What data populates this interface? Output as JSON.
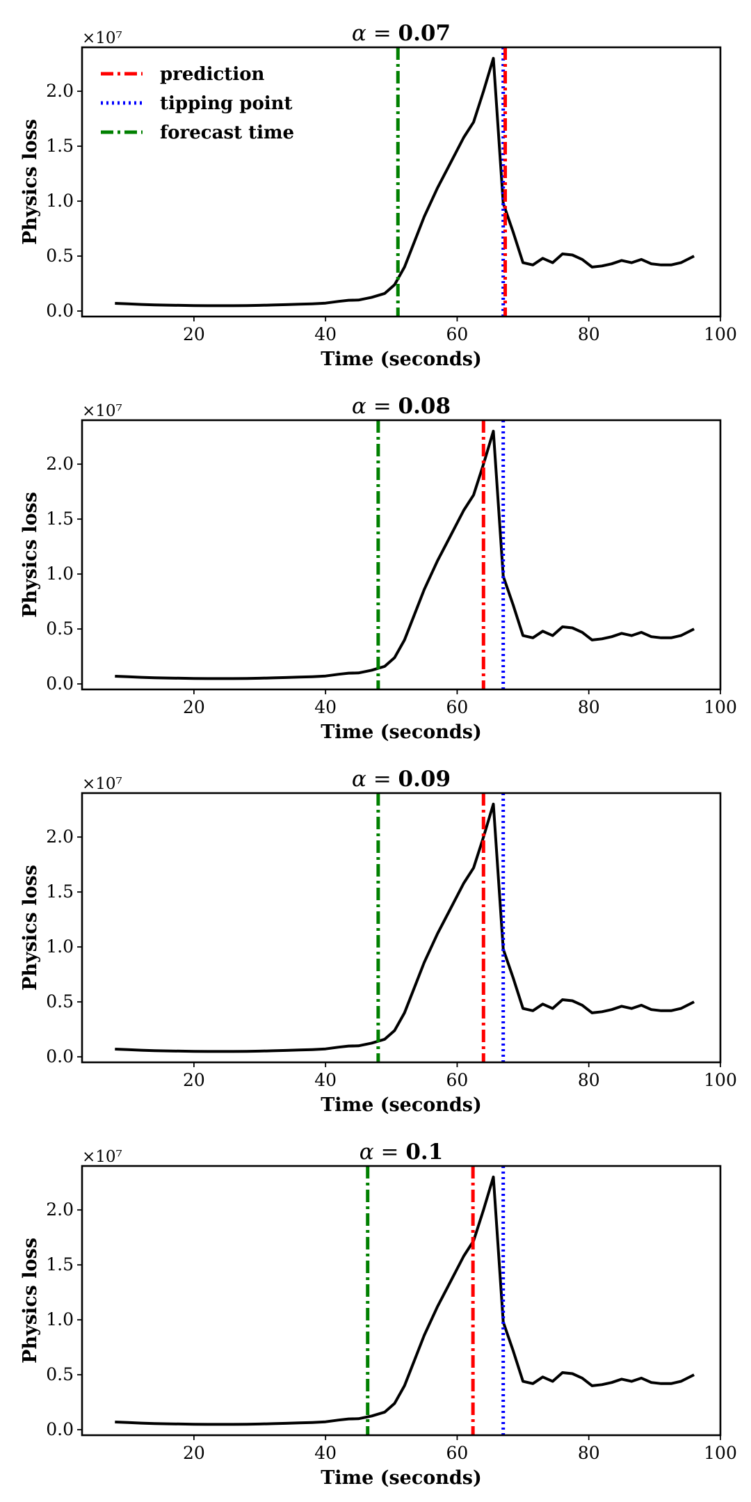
{
  "chart_data": [
    {
      "type": "line",
      "title": {
        "prefix": "α = ",
        "value": "0.07"
      },
      "xlabel": "Time (seconds)",
      "ylabel": "Physics loss",
      "y_exponent_label": "×10⁷",
      "xlim": [
        3,
        100
      ],
      "ylim": [
        -0.05,
        2.4
      ],
      "x_ticks": [
        20,
        40,
        60,
        80,
        100
      ],
      "y_ticks": [
        "0.0",
        "0.5",
        "1.0",
        "1.5",
        "2.0"
      ],
      "legend": {
        "show": true,
        "position": "top-left"
      },
      "x": [
        8,
        10,
        12,
        14,
        16,
        18,
        20,
        22,
        24,
        26,
        28,
        30,
        32,
        34,
        36,
        38,
        40,
        42,
        43.5,
        45,
        47,
        49,
        50.5,
        52,
        53.5,
        55,
        57,
        59,
        61,
        62.5,
        64,
        65.5,
        67,
        68.5,
        70,
        71.5,
        73,
        74.5,
        76,
        77.5,
        79,
        80.5,
        82,
        83.5,
        85,
        86.5,
        88,
        89.5,
        91,
        92.5,
        94,
        96
      ],
      "series": [
        {
          "values": [
            0.07,
            0.065,
            0.06,
            0.056,
            0.054,
            0.052,
            0.05,
            0.049,
            0.049,
            0.049,
            0.05,
            0.052,
            0.055,
            0.058,
            0.062,
            0.066,
            0.072,
            0.088,
            0.098,
            0.1,
            0.125,
            0.16,
            0.24,
            0.4,
            0.63,
            0.86,
            1.12,
            1.35,
            1.58,
            1.72,
            2.0,
            2.3,
            0.98,
            0.72,
            0.44,
            0.42,
            0.48,
            0.44,
            0.52,
            0.51,
            0.47,
            0.4,
            0.41,
            0.43,
            0.46,
            0.44,
            0.47,
            0.43,
            0.42,
            0.42,
            0.44,
            0.5
          ]
        },
        {
          "name": "prediction",
          "vline": 67.3,
          "color": "#ff0000",
          "style": "dashdot"
        },
        {
          "name": "tipping point",
          "vline": 67.0,
          "color": "#0000ff",
          "style": "dotted"
        },
        {
          "name": "forecast time",
          "vline": 51.0,
          "color": "#008000",
          "style": "dashdot"
        }
      ]
    },
    {
      "type": "line",
      "title": {
        "prefix": "α = ",
        "value": "0.08"
      },
      "xlabel": "Time (seconds)",
      "ylabel": "Physics loss",
      "y_exponent_label": "×10⁷",
      "xlim": [
        3,
        100
      ],
      "ylim": [
        -0.05,
        2.4
      ],
      "x_ticks": [
        20,
        40,
        60,
        80,
        100
      ],
      "y_ticks": [
        "0.0",
        "0.5",
        "1.0",
        "1.5",
        "2.0"
      ],
      "legend": {
        "show": false
      },
      "x": [
        8,
        10,
        12,
        14,
        16,
        18,
        20,
        22,
        24,
        26,
        28,
        30,
        32,
        34,
        36,
        38,
        40,
        42,
        43.5,
        45,
        47,
        49,
        50.5,
        52,
        53.5,
        55,
        57,
        59,
        61,
        62.5,
        64,
        65.5,
        67,
        68.5,
        70,
        71.5,
        73,
        74.5,
        76,
        77.5,
        79,
        80.5,
        82,
        83.5,
        85,
        86.5,
        88,
        89.5,
        91,
        92.5,
        94,
        96
      ],
      "series": [
        {
          "values": [
            0.07,
            0.065,
            0.06,
            0.056,
            0.054,
            0.052,
            0.05,
            0.049,
            0.049,
            0.049,
            0.05,
            0.052,
            0.055,
            0.058,
            0.062,
            0.066,
            0.072,
            0.088,
            0.098,
            0.1,
            0.125,
            0.16,
            0.24,
            0.4,
            0.63,
            0.86,
            1.12,
            1.35,
            1.58,
            1.72,
            2.0,
            2.3,
            0.98,
            0.72,
            0.44,
            0.42,
            0.48,
            0.44,
            0.52,
            0.51,
            0.47,
            0.4,
            0.41,
            0.43,
            0.46,
            0.44,
            0.47,
            0.43,
            0.42,
            0.42,
            0.44,
            0.5
          ]
        },
        {
          "name": "prediction",
          "vline": 64.0,
          "color": "#ff0000",
          "style": "dashdot"
        },
        {
          "name": "tipping point",
          "vline": 67.0,
          "color": "#0000ff",
          "style": "dotted"
        },
        {
          "name": "forecast time",
          "vline": 48.0,
          "color": "#008000",
          "style": "dashdot"
        }
      ]
    },
    {
      "type": "line",
      "title": {
        "prefix": "α = ",
        "value": "0.09"
      },
      "xlabel": "Time (seconds)",
      "ylabel": "Physics loss",
      "y_exponent_label": "×10⁷",
      "xlim": [
        3,
        100
      ],
      "ylim": [
        -0.05,
        2.4
      ],
      "x_ticks": [
        20,
        40,
        60,
        80,
        100
      ],
      "y_ticks": [
        "0.0",
        "0.5",
        "1.0",
        "1.5",
        "2.0"
      ],
      "legend": {
        "show": false
      },
      "x": [
        8,
        10,
        12,
        14,
        16,
        18,
        20,
        22,
        24,
        26,
        28,
        30,
        32,
        34,
        36,
        38,
        40,
        42,
        43.5,
        45,
        47,
        49,
        50.5,
        52,
        53.5,
        55,
        57,
        59,
        61,
        62.5,
        64,
        65.5,
        67,
        68.5,
        70,
        71.5,
        73,
        74.5,
        76,
        77.5,
        79,
        80.5,
        82,
        83.5,
        85,
        86.5,
        88,
        89.5,
        91,
        92.5,
        94,
        96
      ],
      "series": [
        {
          "values": [
            0.07,
            0.065,
            0.06,
            0.056,
            0.054,
            0.052,
            0.05,
            0.049,
            0.049,
            0.049,
            0.05,
            0.052,
            0.055,
            0.058,
            0.062,
            0.066,
            0.072,
            0.088,
            0.098,
            0.1,
            0.125,
            0.16,
            0.24,
            0.4,
            0.63,
            0.86,
            1.12,
            1.35,
            1.58,
            1.72,
            2.0,
            2.3,
            0.98,
            0.72,
            0.44,
            0.42,
            0.48,
            0.44,
            0.52,
            0.51,
            0.47,
            0.4,
            0.41,
            0.43,
            0.46,
            0.44,
            0.47,
            0.43,
            0.42,
            0.42,
            0.44,
            0.5
          ]
        },
        {
          "name": "prediction",
          "vline": 64.0,
          "color": "#ff0000",
          "style": "dashdot"
        },
        {
          "name": "tipping point",
          "vline": 67.0,
          "color": "#0000ff",
          "style": "dotted"
        },
        {
          "name": "forecast time",
          "vline": 48.0,
          "color": "#008000",
          "style": "dashdot"
        }
      ]
    },
    {
      "type": "line",
      "title": {
        "prefix": "α = ",
        "value": "0.1"
      },
      "xlabel": "Time (seconds)",
      "ylabel": "Physics loss",
      "y_exponent_label": "×10⁷",
      "xlim": [
        3,
        100
      ],
      "ylim": [
        -0.05,
        2.4
      ],
      "x_ticks": [
        20,
        40,
        60,
        80,
        100
      ],
      "y_ticks": [
        "0.0",
        "0.5",
        "1.0",
        "1.5",
        "2.0"
      ],
      "legend": {
        "show": false
      },
      "x": [
        8,
        10,
        12,
        14,
        16,
        18,
        20,
        22,
        24,
        26,
        28,
        30,
        32,
        34,
        36,
        38,
        40,
        42,
        43.5,
        45,
        47,
        49,
        50.5,
        52,
        53.5,
        55,
        57,
        59,
        61,
        62.5,
        64,
        65.5,
        67,
        68.5,
        70,
        71.5,
        73,
        74.5,
        76,
        77.5,
        79,
        80.5,
        82,
        83.5,
        85,
        86.5,
        88,
        89.5,
        91,
        92.5,
        94,
        96
      ],
      "series": [
        {
          "values": [
            0.07,
            0.065,
            0.06,
            0.056,
            0.054,
            0.052,
            0.05,
            0.049,
            0.049,
            0.049,
            0.05,
            0.052,
            0.055,
            0.058,
            0.062,
            0.066,
            0.072,
            0.088,
            0.098,
            0.1,
            0.125,
            0.16,
            0.24,
            0.4,
            0.63,
            0.86,
            1.12,
            1.35,
            1.58,
            1.72,
            2.0,
            2.3,
            0.98,
            0.72,
            0.44,
            0.42,
            0.48,
            0.44,
            0.52,
            0.51,
            0.47,
            0.4,
            0.41,
            0.43,
            0.46,
            0.44,
            0.47,
            0.43,
            0.42,
            0.42,
            0.44,
            0.5
          ]
        },
        {
          "name": "prediction",
          "vline": 62.4,
          "color": "#ff0000",
          "style": "dashdot"
        },
        {
          "name": "tipping point",
          "vline": 67.0,
          "color": "#0000ff",
          "style": "dotted"
        },
        {
          "name": "forecast time",
          "vline": 46.4,
          "color": "#008000",
          "style": "dashdot"
        }
      ]
    }
  ]
}
